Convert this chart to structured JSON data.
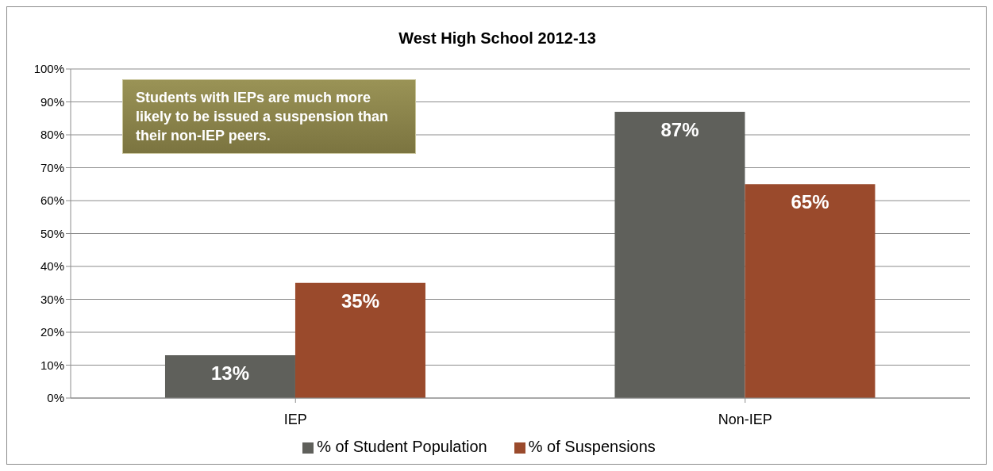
{
  "chart_data": {
    "type": "bar",
    "title": "West High School 2012-13",
    "categories": [
      "IEP",
      "Non-IEP"
    ],
    "series": [
      {
        "name": "% of Student Population",
        "color": "#5f605b",
        "values": [
          13,
          87
        ],
        "value_labels": [
          "13%",
          "87%"
        ]
      },
      {
        "name": "% of Suspensions",
        "color": "#9a4a2c",
        "values": [
          35,
          65
        ],
        "value_labels": [
          "35%",
          "65%"
        ]
      }
    ],
    "ylim": [
      0,
      100
    ],
    "yticks": [
      {
        "value": 0,
        "label": "0%"
      },
      {
        "value": 10,
        "label": "10%"
      },
      {
        "value": 20,
        "label": "20%"
      },
      {
        "value": 30,
        "label": "30%"
      },
      {
        "value": 40,
        "label": "40%"
      },
      {
        "value": 50,
        "label": "50%"
      },
      {
        "value": 60,
        "label": "60%"
      },
      {
        "value": 70,
        "label": "70%"
      },
      {
        "value": 80,
        "label": "80%"
      },
      {
        "value": 90,
        "label": "90%"
      },
      {
        "value": 100,
        "label": "100%"
      }
    ],
    "grid": "y",
    "legend": "bottom",
    "annotations": [
      "Students with IEPs are much more likely to be issued a suspension than their non-IEP peers."
    ]
  }
}
